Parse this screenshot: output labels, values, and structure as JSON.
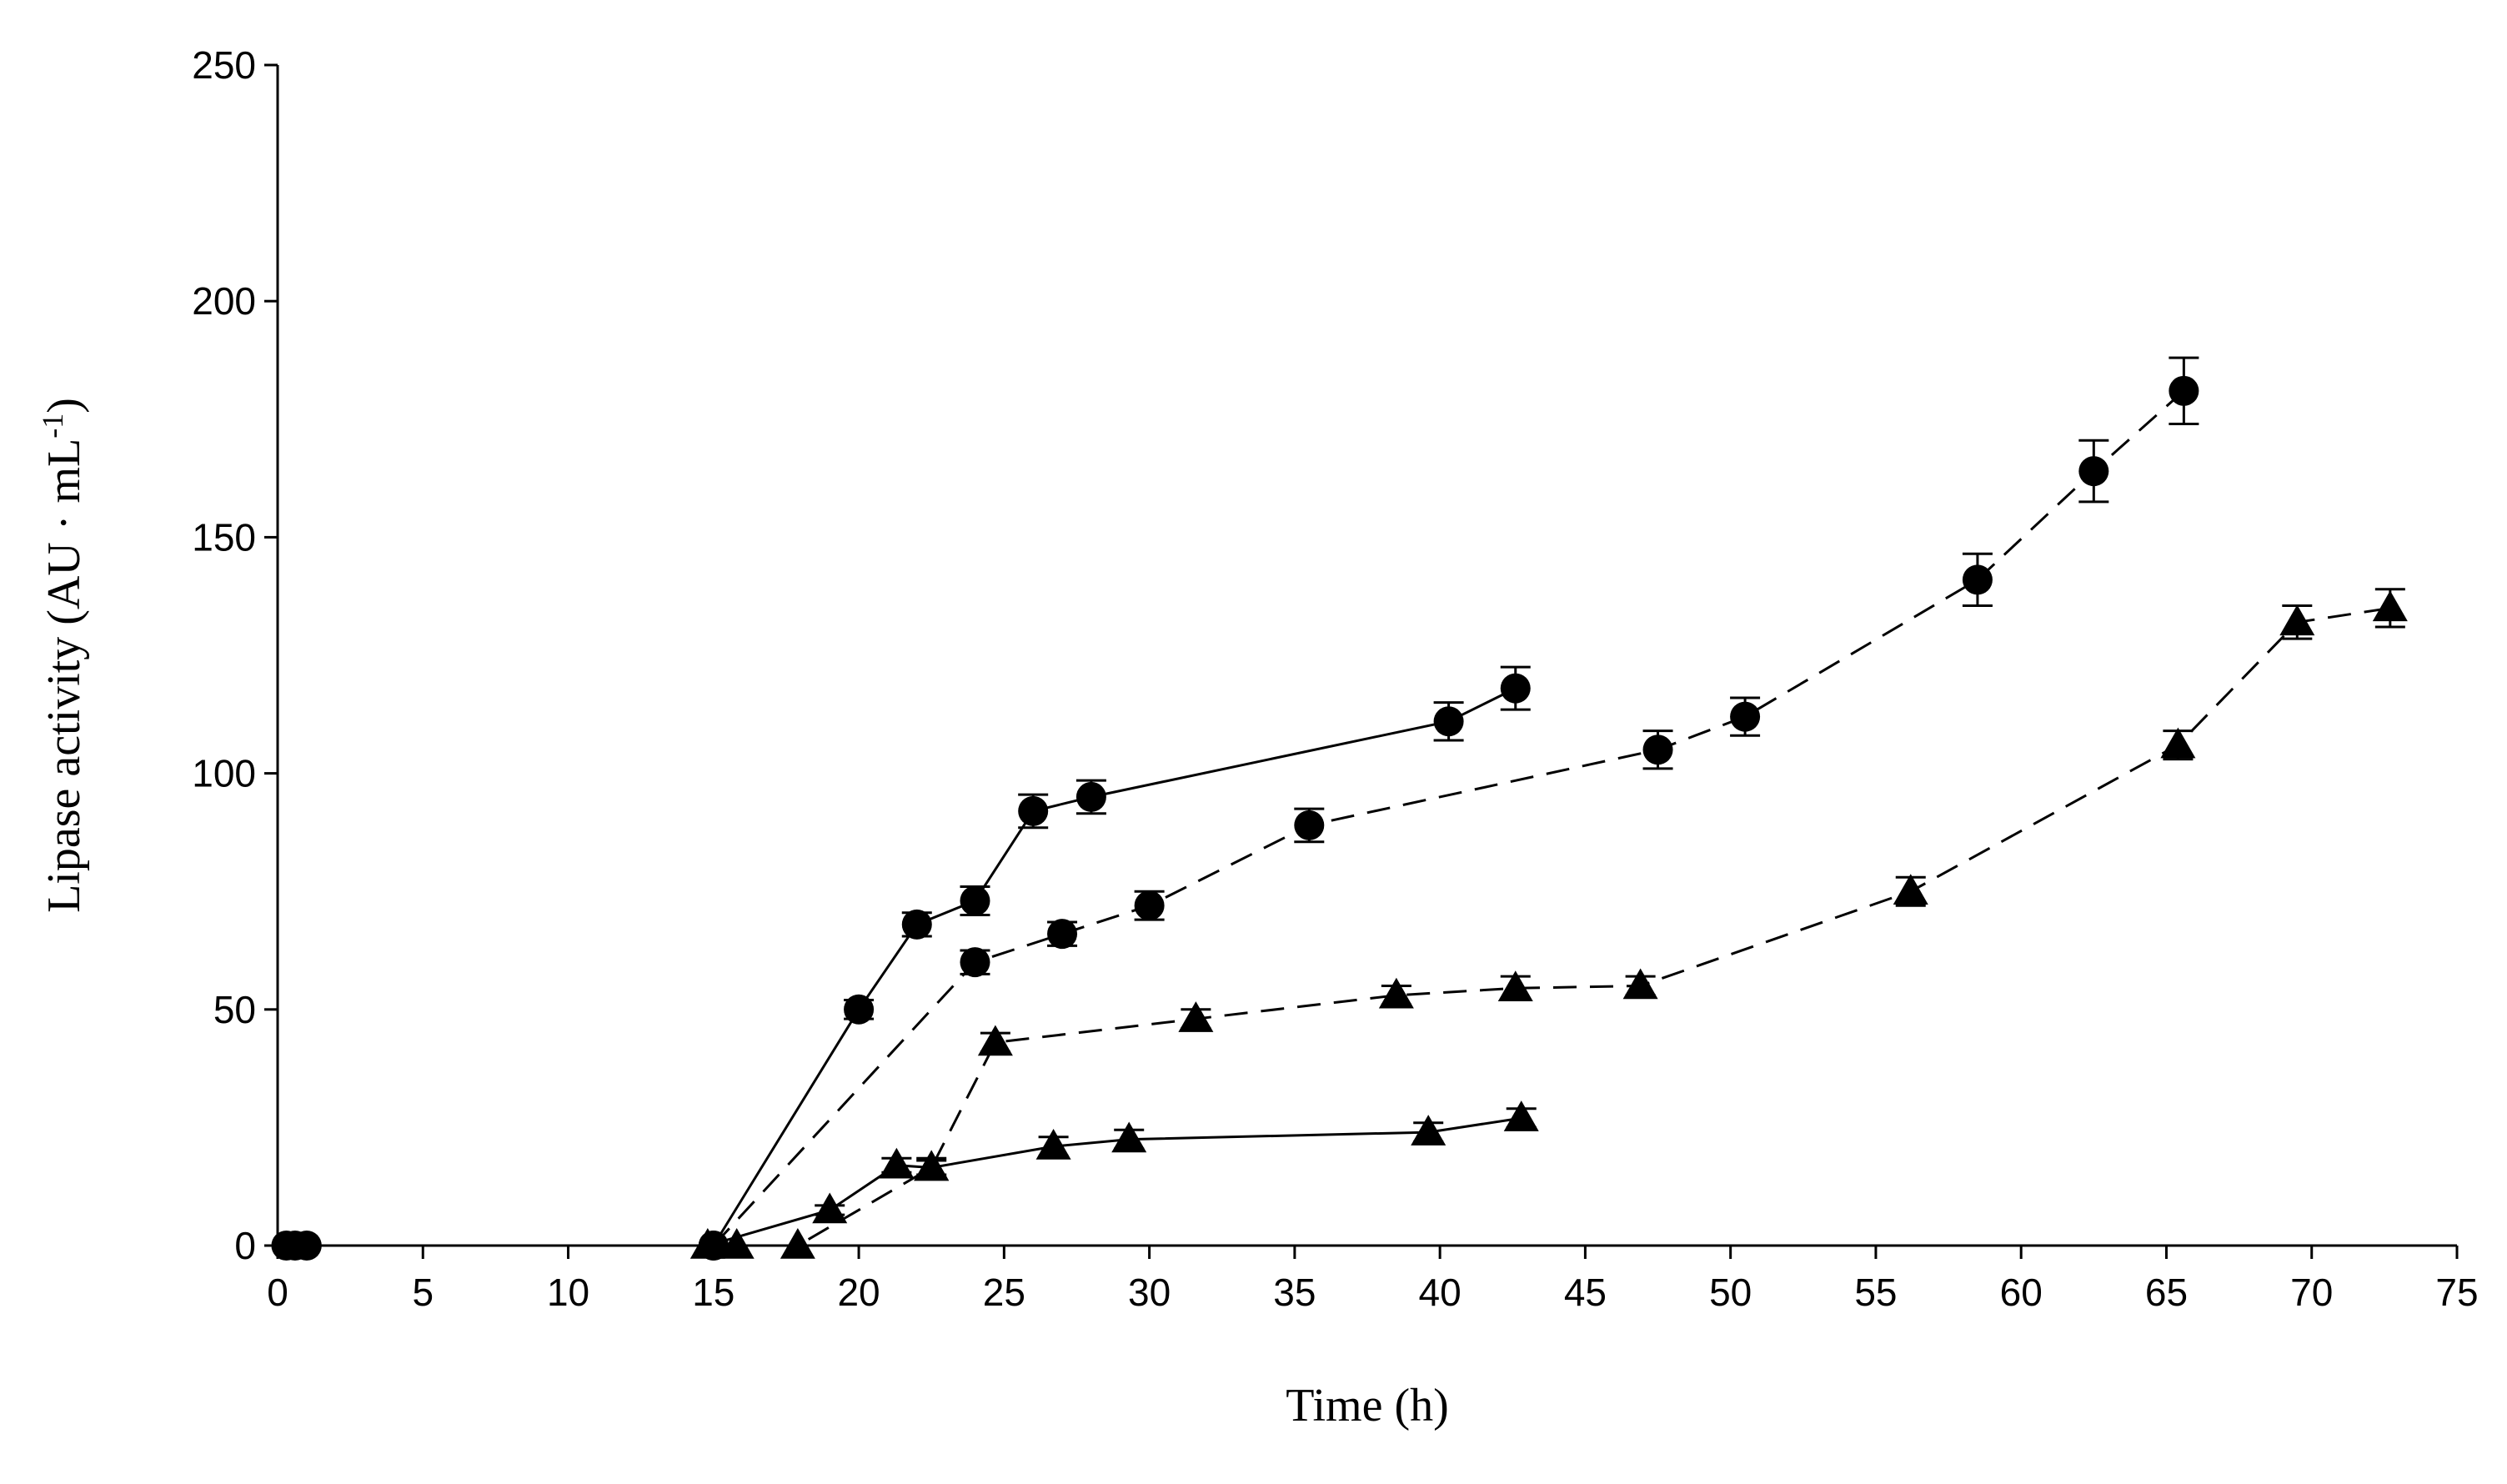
{
  "chart_data": {
    "type": "line",
    "title": "",
    "xlabel": "Time (h)",
    "ylabel": "Lipase activity (AU · mL",
    "ylabel_sup": "-1",
    "ylabel_close": ")",
    "xlim": [
      0,
      75
    ],
    "ylim": [
      0,
      250
    ],
    "xticks": [
      0,
      5,
      10,
      15,
      20,
      25,
      30,
      35,
      40,
      45,
      50,
      55,
      60,
      65,
      70,
      75
    ],
    "yticks": [
      0,
      50,
      100,
      150,
      200,
      250
    ],
    "grid": false,
    "series": [
      {
        "name": "circles-solid",
        "marker": "circle",
        "line": "solid",
        "x": [
          0.3,
          0.6,
          1.0,
          15.0,
          20.0,
          22.0,
          24.0,
          26.0,
          28.0,
          40.3,
          42.6
        ],
        "y": [
          0,
          0,
          0,
          0,
          50,
          68,
          73,
          92,
          95,
          111,
          118
        ],
        "err": [
          0,
          0,
          0,
          0,
          2,
          2.5,
          3,
          3.5,
          3.5,
          4,
          4.5
        ]
      },
      {
        "name": "circles-dashed",
        "marker": "circle",
        "line": "dashed",
        "x": [
          15.0,
          24.0,
          27.0,
          30.0,
          35.5,
          47.5,
          50.5,
          58.5,
          62.5,
          65.6
        ],
        "y": [
          0,
          60,
          66,
          72,
          89,
          105,
          112,
          141,
          164,
          181
        ],
        "err": [
          0,
          2.5,
          2.5,
          3,
          3.5,
          4,
          4,
          5.5,
          6.5,
          7
        ]
      },
      {
        "name": "triangles-solid",
        "marker": "triangle",
        "line": "solid",
        "x": [
          14.8,
          19.0,
          21.3,
          22.5,
          26.7,
          29.3,
          39.6,
          42.8
        ],
        "y": [
          0,
          7.5,
          17,
          16.5,
          21,
          22.5,
          24,
          27
        ],
        "err": [
          0,
          1,
          1.5,
          2,
          2,
          2,
          2,
          2
        ]
      },
      {
        "name": "triangles-dashed",
        "marker": "triangle",
        "line": "dashed",
        "x": [
          15.8,
          17.9,
          22.5,
          24.7,
          31.6,
          38.5,
          42.6,
          46.9,
          56.2,
          65.4,
          69.5,
          72.7
        ],
        "y": [
          0,
          0,
          16.5,
          43,
          48,
          53,
          54.5,
          55,
          75,
          106,
          132,
          135
        ],
        "err": [
          0,
          0,
          1.5,
          2,
          2,
          2,
          2.5,
          2,
          3,
          3,
          3.5,
          4
        ]
      }
    ]
  }
}
